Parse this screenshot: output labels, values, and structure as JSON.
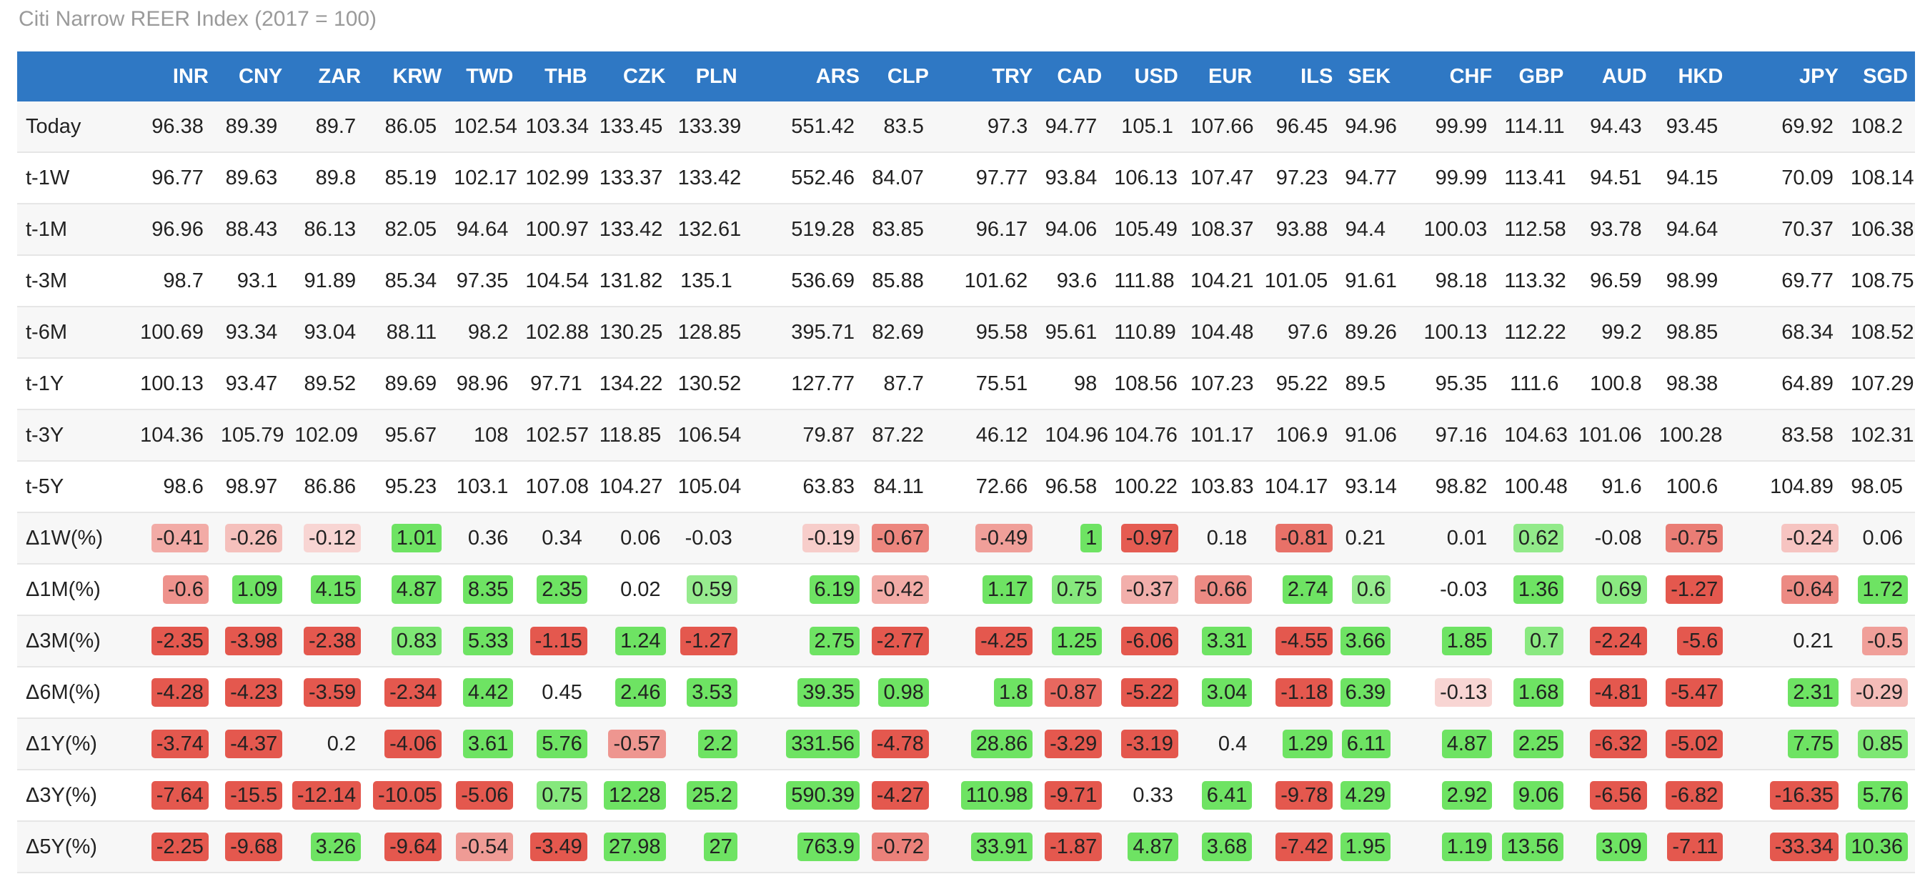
{
  "title": "Citi Narrow REER Index (2017 = 100)",
  "colors": {
    "header_bg": "#2f78c4",
    "strong_green": "#66e05c",
    "light_green": "#d8f7d3",
    "strong_red": "#e0443a",
    "light_red": "#fbe0de"
  },
  "table": {
    "columns": [
      "",
      "INR",
      "CNY",
      "ZAR",
      "KRW",
      "TWD",
      "THB",
      "CZK",
      "PLN",
      "ARS",
      "CLP",
      "TRY",
      "CAD",
      "USD",
      "EUR",
      "ILS",
      "SEK",
      "CHF",
      "GBP",
      "AUD",
      "HKD",
      "JPY",
      "SGD"
    ],
    "rows": [
      {
        "label": "Today",
        "values": [
          "96.38",
          "89.39",
          "89.7",
          "86.05",
          "102.54",
          "103.34",
          "133.45",
          "133.39",
          "551.42",
          "83.5",
          "97.3",
          "94.77",
          "105.1",
          "107.66",
          "96.45",
          "94.96",
          "99.99",
          "114.11",
          "94.43",
          "93.45",
          "69.92",
          "108.2"
        ]
      },
      {
        "label": "t-1W",
        "values": [
          "96.77",
          "89.63",
          "89.8",
          "85.19",
          "102.17",
          "102.99",
          "133.37",
          "133.42",
          "552.46",
          "84.07",
          "97.77",
          "93.84",
          "106.13",
          "107.47",
          "97.23",
          "94.77",
          "99.99",
          "113.41",
          "94.51",
          "94.15",
          "70.09",
          "108.14"
        ]
      },
      {
        "label": "t-1M",
        "values": [
          "96.96",
          "88.43",
          "86.13",
          "82.05",
          "94.64",
          "100.97",
          "133.42",
          "132.61",
          "519.28",
          "83.85",
          "96.17",
          "94.06",
          "105.49",
          "108.37",
          "93.88",
          "94.4",
          "100.03",
          "112.58",
          "93.78",
          "94.64",
          "70.37",
          "106.38"
        ]
      },
      {
        "label": "t-3M",
        "values": [
          "98.7",
          "93.1",
          "91.89",
          "85.34",
          "97.35",
          "104.54",
          "131.82",
          "135.1",
          "536.69",
          "85.88",
          "101.62",
          "93.6",
          "111.88",
          "104.21",
          "101.05",
          "91.61",
          "98.18",
          "113.32",
          "96.59",
          "98.99",
          "69.77",
          "108.75"
        ]
      },
      {
        "label": "t-6M",
        "values": [
          "100.69",
          "93.34",
          "93.04",
          "88.11",
          "98.2",
          "102.88",
          "130.25",
          "128.85",
          "395.71",
          "82.69",
          "95.58",
          "95.61",
          "110.89",
          "104.48",
          "97.6",
          "89.26",
          "100.13",
          "112.22",
          "99.2",
          "98.85",
          "68.34",
          "108.52"
        ]
      },
      {
        "label": "t-1Y",
        "values": [
          "100.13",
          "93.47",
          "89.52",
          "89.69",
          "98.96",
          "97.71",
          "134.22",
          "130.52",
          "127.77",
          "87.7",
          "75.51",
          "98",
          "108.56",
          "107.23",
          "95.22",
          "89.5",
          "95.35",
          "111.6",
          "100.8",
          "98.38",
          "64.89",
          "107.29"
        ]
      },
      {
        "label": "t-3Y",
        "values": [
          "104.36",
          "105.79",
          "102.09",
          "95.67",
          "108",
          "102.57",
          "118.85",
          "106.54",
          "79.87",
          "87.22",
          "46.12",
          "104.96",
          "104.76",
          "101.17",
          "106.9",
          "91.06",
          "97.16",
          "104.63",
          "101.06",
          "100.28",
          "83.58",
          "102.31"
        ]
      },
      {
        "label": "t-5Y",
        "values": [
          "98.6",
          "98.97",
          "86.86",
          "95.23",
          "103.1",
          "107.08",
          "104.27",
          "105.04",
          "63.83",
          "84.11",
          "72.66",
          "96.58",
          "100.22",
          "103.83",
          "104.17",
          "93.14",
          "98.82",
          "100.48",
          "91.6",
          "100.6",
          "104.89",
          "98.05"
        ]
      },
      {
        "label": "Δ1W(%)",
        "values": [
          "-0.41",
          "-0.26",
          "-0.12",
          "1.01",
          "0.36",
          "0.34",
          "0.06",
          "-0.03",
          "-0.19",
          "-0.67",
          "-0.49",
          "1",
          "-0.97",
          "0.18",
          "-0.81",
          "0.21",
          "0.01",
          "0.62",
          "-0.08",
          "-0.75",
          "-0.24",
          "0.06"
        ]
      },
      {
        "label": "Δ1M(%)",
        "values": [
          "-0.6",
          "1.09",
          "4.15",
          "4.87",
          "8.35",
          "2.35",
          "0.02",
          "0.59",
          "6.19",
          "-0.42",
          "1.17",
          "0.75",
          "-0.37",
          "-0.66",
          "2.74",
          "0.6",
          "-0.03",
          "1.36",
          "0.69",
          "-1.27",
          "-0.64",
          "1.72"
        ]
      },
      {
        "label": "Δ3M(%)",
        "values": [
          "-2.35",
          "-3.98",
          "-2.38",
          "0.83",
          "5.33",
          "-1.15",
          "1.24",
          "-1.27",
          "2.75",
          "-2.77",
          "-4.25",
          "1.25",
          "-6.06",
          "3.31",
          "-4.55",
          "3.66",
          "1.85",
          "0.7",
          "-2.24",
          "-5.6",
          "0.21",
          "-0.5"
        ]
      },
      {
        "label": "Δ6M(%)",
        "values": [
          "-4.28",
          "-4.23",
          "-3.59",
          "-2.34",
          "4.42",
          "0.45",
          "2.46",
          "3.53",
          "39.35",
          "0.98",
          "1.8",
          "-0.87",
          "-5.22",
          "3.04",
          "-1.18",
          "6.39",
          "-0.13",
          "1.68",
          "-4.81",
          "-5.47",
          "2.31",
          "-0.29"
        ]
      },
      {
        "label": "Δ1Y(%)",
        "values": [
          "-3.74",
          "-4.37",
          "0.2",
          "-4.06",
          "3.61",
          "5.76",
          "-0.57",
          "2.2",
          "331.56",
          "-4.78",
          "28.86",
          "-3.29",
          "-3.19",
          "0.4",
          "1.29",
          "6.11",
          "4.87",
          "2.25",
          "-6.32",
          "-5.02",
          "7.75",
          "0.85"
        ]
      },
      {
        "label": "Δ3Y(%)",
        "values": [
          "-7.64",
          "-15.5",
          "-12.14",
          "-10.05",
          "-5.06",
          "0.75",
          "12.28",
          "25.2",
          "590.39",
          "-4.27",
          "110.98",
          "-9.71",
          "0.33",
          "6.41",
          "-9.78",
          "4.29",
          "2.92",
          "9.06",
          "-6.56",
          "-6.82",
          "-16.35",
          "5.76"
        ]
      },
      {
        "label": "Δ5Y(%)",
        "values": [
          "-2.25",
          "-9.68",
          "3.26",
          "-9.64",
          "-0.54",
          "-3.49",
          "27.98",
          "27",
          "763.9",
          "-0.72",
          "33.91",
          "-1.87",
          "4.87",
          "3.68",
          "-7.42",
          "1.95",
          "1.19",
          "13.56",
          "3.09",
          "-7.11",
          "-33.34",
          "10.36"
        ]
      }
    ]
  }
}
